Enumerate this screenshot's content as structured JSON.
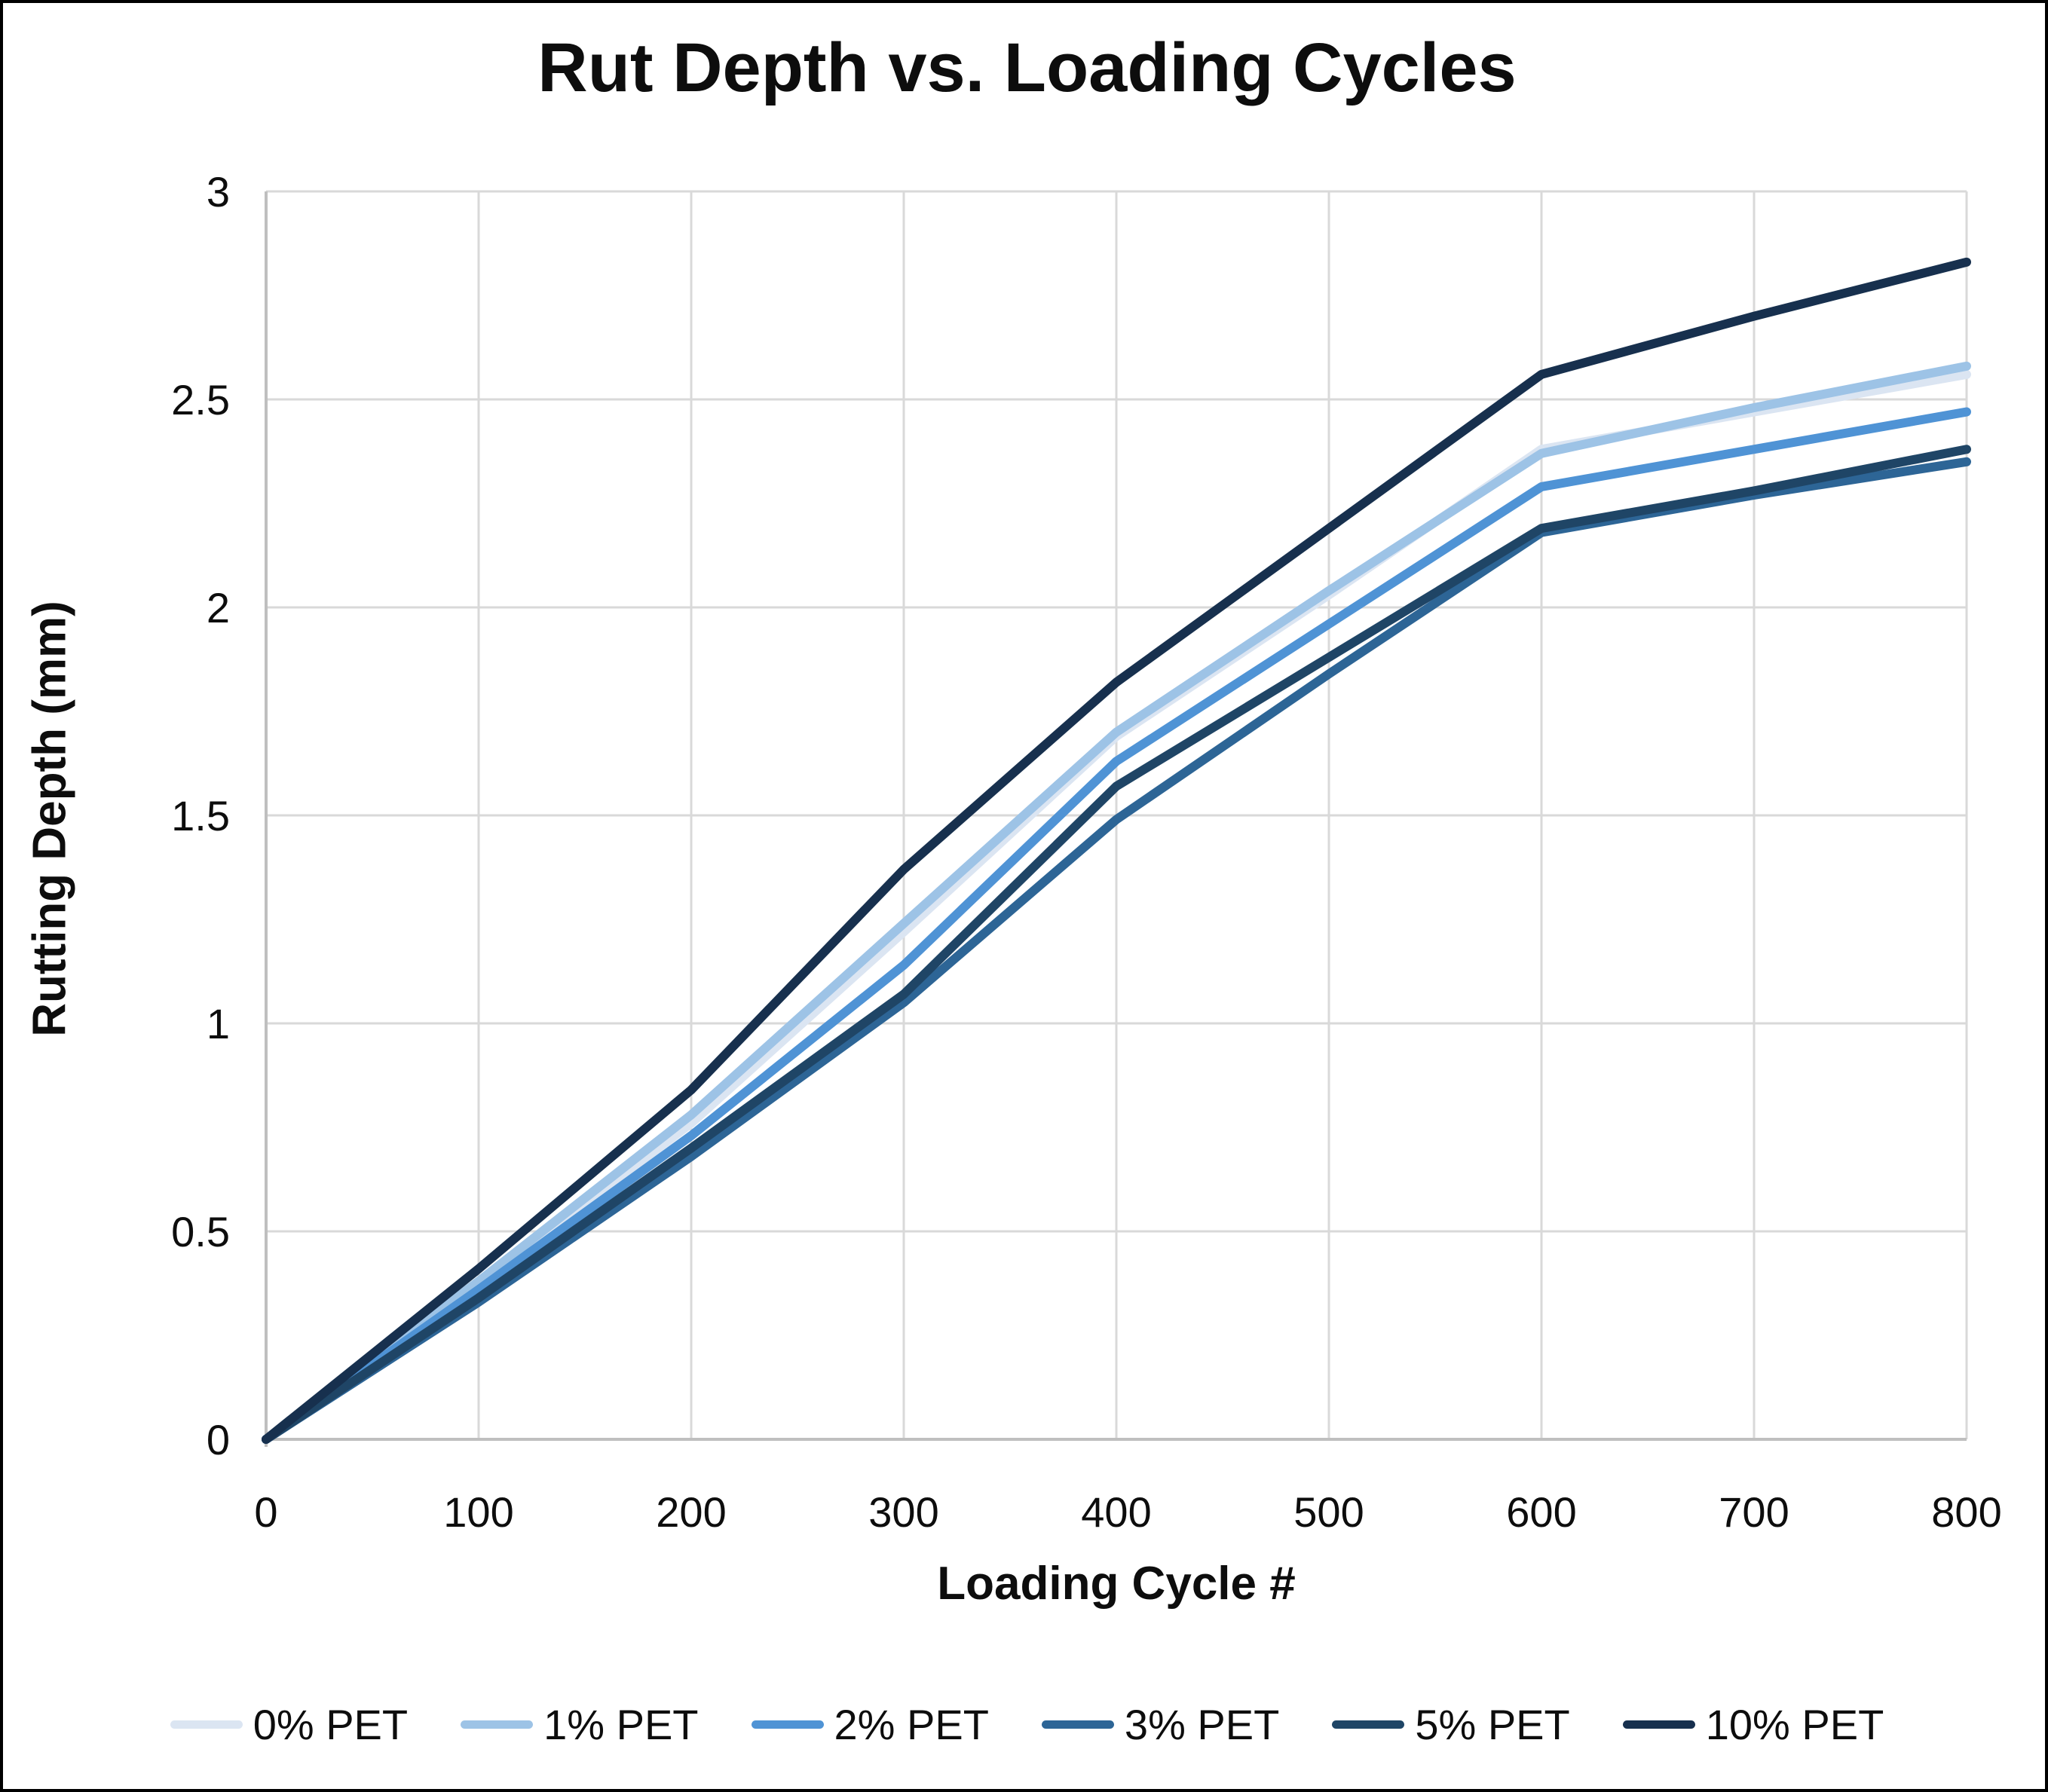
{
  "title": "Rut Depth vs. Loading Cycles",
  "chart_data": {
    "type": "line",
    "title": "Rut Depth vs. Loading Cycles",
    "xlabel": "Loading Cycle #",
    "ylabel": "Rutting Depth (mm)",
    "xlim": [
      0,
      800
    ],
    "ylim": [
      0,
      3
    ],
    "x_ticks": [
      0,
      100,
      200,
      300,
      400,
      500,
      600,
      700,
      800
    ],
    "y_ticks": [
      0,
      0.5,
      1,
      1.5,
      2,
      2.5,
      3
    ],
    "y_tick_labels": [
      "0",
      "0.5",
      "1",
      "1.5",
      "2",
      "2.5",
      "3"
    ],
    "grid": true,
    "legend_position": "bottom",
    "x": [
      0,
      100,
      200,
      300,
      400,
      500,
      600,
      700,
      800
    ],
    "series": [
      {
        "name": "0% PET",
        "color": "#dbe5f2",
        "values": [
          0,
          0.37,
          0.76,
          1.22,
          1.69,
          2.03,
          2.38,
          2.47,
          2.56
        ]
      },
      {
        "name": "1% PET",
        "color": "#9dc3e6",
        "values": [
          0,
          0.38,
          0.78,
          1.24,
          1.7,
          2.04,
          2.37,
          2.48,
          2.58
        ]
      },
      {
        "name": "2% PET",
        "color": "#4f93d5",
        "values": [
          0,
          0.36,
          0.73,
          1.14,
          1.63,
          1.96,
          2.29,
          2.38,
          2.47
        ]
      },
      {
        "name": "3% PET",
        "color": "#2d6596",
        "values": [
          0,
          0.33,
          0.68,
          1.05,
          1.49,
          1.84,
          2.18,
          2.27,
          2.35
        ]
      },
      {
        "name": "5% PET",
        "color": "#1f4566",
        "values": [
          0,
          0.34,
          0.7,
          1.07,
          1.57,
          1.88,
          2.19,
          2.28,
          2.38
        ]
      },
      {
        "name": "10% PET",
        "color": "#17304e",
        "values": [
          0,
          0.41,
          0.84,
          1.37,
          1.82,
          2.19,
          2.56,
          2.7,
          2.83
        ]
      }
    ],
    "style": {
      "grid_color": "#d9d9d9",
      "axis_color": "#bfbfbf",
      "line_width": 12,
      "tick_font_size": 56
    }
  }
}
